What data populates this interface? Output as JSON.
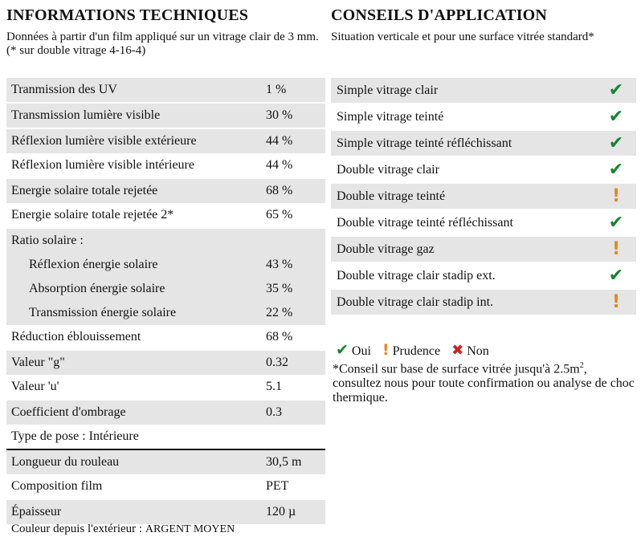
{
  "left": {
    "title": "INFORMATIONS TECHNIQUES",
    "intro": "Données à partir d'un film appliqué sur un vitrage clair de 3 mm. (* sur double vitrage 4-16-4)",
    "rows": [
      {
        "label": "Tranmission des UV",
        "value": "1 %"
      },
      {
        "label": "Transmission lumière visible",
        "value": "30 %"
      },
      {
        "label": "Réflexion lumière visible extérieure",
        "value": "44 %"
      },
      {
        "label": "Réflexion lumière visible intérieure",
        "value": "44 %"
      },
      {
        "label": "Energie solaire totale rejetée",
        "value": "68 %"
      },
      {
        "label": "Energie solaire totale rejetée 2*",
        "value": "65 %"
      },
      {
        "label": "Ratio solaire :",
        "value": ""
      },
      {
        "label": "Réflexion énergie solaire",
        "value": "43 %"
      },
      {
        "label": "Absorption énergie solaire",
        "value": "35 %"
      },
      {
        "label": "Transmission énergie solaire",
        "value": "22 %"
      },
      {
        "label": "Réduction éblouissement",
        "value": "68 %"
      },
      {
        "label": "Valeur \"g\"",
        "value": "0.32"
      },
      {
        "label": "Valeur 'u'",
        "value": "5.1"
      },
      {
        "label": "Coefficient d'ombrage",
        "value": "0.3"
      },
      {
        "label": "Type de pose : Intérieure",
        "value": ""
      },
      {
        "label": "Longueur du rouleau",
        "value": "30,5 m"
      },
      {
        "label": "Composition film",
        "value": "PET"
      },
      {
        "label": "Épaisseur",
        "value": "120 µ"
      }
    ],
    "couleur_label": "Couleur depuis l'extérieur :",
    "couleur_value": "ARGENT MOYEN"
  },
  "right": {
    "title": "CONSEILS D'APPLICATION",
    "intro": "Situation verticale et pour une surface vitrée standard*",
    "rows": [
      {
        "label": "Simple vitrage clair",
        "status": "oui"
      },
      {
        "label": "Simple vitrage teinté",
        "status": "oui"
      },
      {
        "label": "Simple vitrage teinté réfléchissant",
        "status": "oui"
      },
      {
        "label": "Double vitrage clair",
        "status": "oui"
      },
      {
        "label": "Double vitrage teinté",
        "status": "prudence"
      },
      {
        "label": "Double vitrage teinté réfléchissant",
        "status": "oui"
      },
      {
        "label": "Double vitrage gaz",
        "status": "prudence"
      },
      {
        "label": "Double vitrage clair stadip ext.",
        "status": "oui"
      },
      {
        "label": "Double vitrage clair stadip int.",
        "status": "prudence"
      }
    ],
    "legend": {
      "oui": "Oui",
      "prudence": "Prudence",
      "non": "Non"
    },
    "note_pre": "*Conseil sur base de surface vitrée jusqu'à 2.5m",
    "note_sup": "2",
    "note_post": ", consultez nous pour toute confirmation ou analyse de choc thermique.",
    "colors": {
      "oui": "#16852f",
      "prudence": "#e8861c",
      "non": "#d02020"
    },
    "icons": {
      "oui": "check-icon",
      "prudence": "exclamation-icon",
      "non": "cross-icon"
    }
  }
}
